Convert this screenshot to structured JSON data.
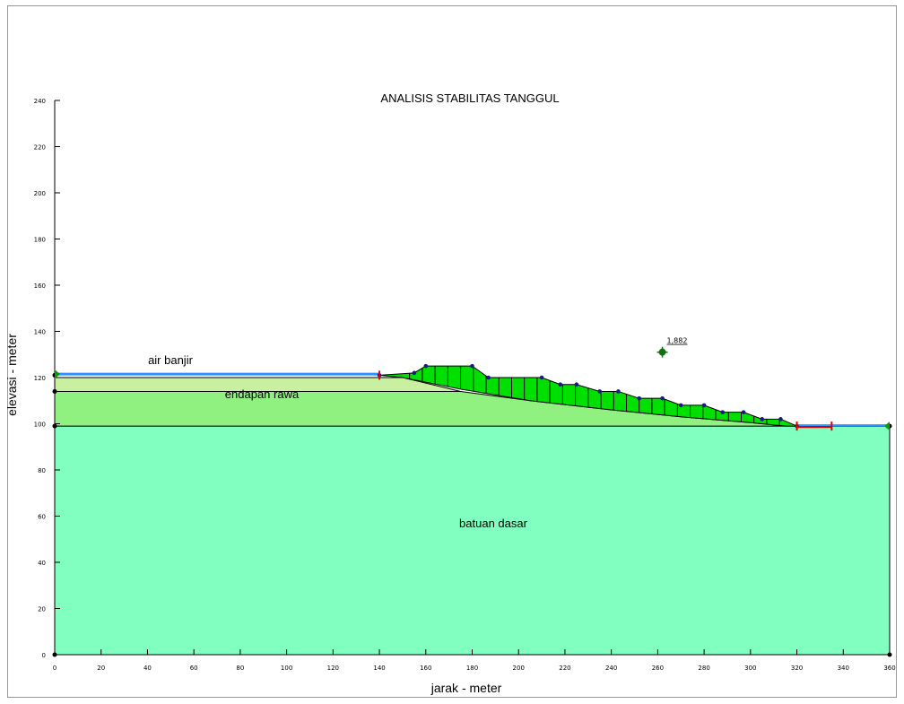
{
  "title": "ANALISIS STABILITAS TANGGUL",
  "xlabel": "jarak - meter",
  "ylabel": "elevasi - meter",
  "x_ticks": [
    0,
    20,
    40,
    60,
    80,
    100,
    120,
    140,
    160,
    180,
    200,
    220,
    240,
    260,
    280,
    300,
    320,
    340,
    360
  ],
  "y_ticks": [
    0,
    20,
    40,
    60,
    80,
    100,
    120,
    140,
    160,
    180,
    200,
    220,
    240
  ],
  "xlim": [
    0,
    360
  ],
  "ylim": [
    0,
    240
  ],
  "regions": {
    "bedrock": {
      "label": "batuan dasar",
      "color": "#80ffc0",
      "top_elevation": 99
    },
    "swamp": {
      "label": "endapan rawa",
      "color": "#90f080",
      "top_elevation": 114
    },
    "clay_layer": {
      "color": "#c8f0a0",
      "top_elevation": 120
    },
    "flood_water": {
      "label": "air banjir",
      "color": "#3090ff",
      "elevation": 121.5
    },
    "levee_color": "#00e000"
  },
  "slip_surface_points": [
    [
      150,
      120
    ],
    [
      175,
      115
    ],
    [
      205,
      110
    ],
    [
      240,
      106
    ],
    [
      270,
      103
    ],
    [
      300,
      100.5
    ],
    [
      315,
      99
    ]
  ],
  "levee_profile_points": [
    [
      140,
      121
    ],
    [
      155,
      122
    ],
    [
      160,
      125
    ],
    [
      180,
      125
    ],
    [
      187,
      120
    ],
    [
      210,
      120
    ],
    [
      218,
      117
    ],
    [
      225,
      117
    ],
    [
      235,
      114
    ],
    [
      243,
      114
    ],
    [
      252,
      111
    ],
    [
      262,
      111
    ],
    [
      270,
      108
    ],
    [
      280,
      108
    ],
    [
      288,
      105
    ],
    [
      297,
      105
    ],
    [
      305,
      102
    ],
    [
      313,
      102
    ],
    [
      320,
      99
    ]
  ],
  "factor_of_safety": {
    "value": "1,882",
    "x": 262,
    "y": 131
  },
  "markers": {
    "red_limits": [
      140,
      320,
      335
    ]
  }
}
